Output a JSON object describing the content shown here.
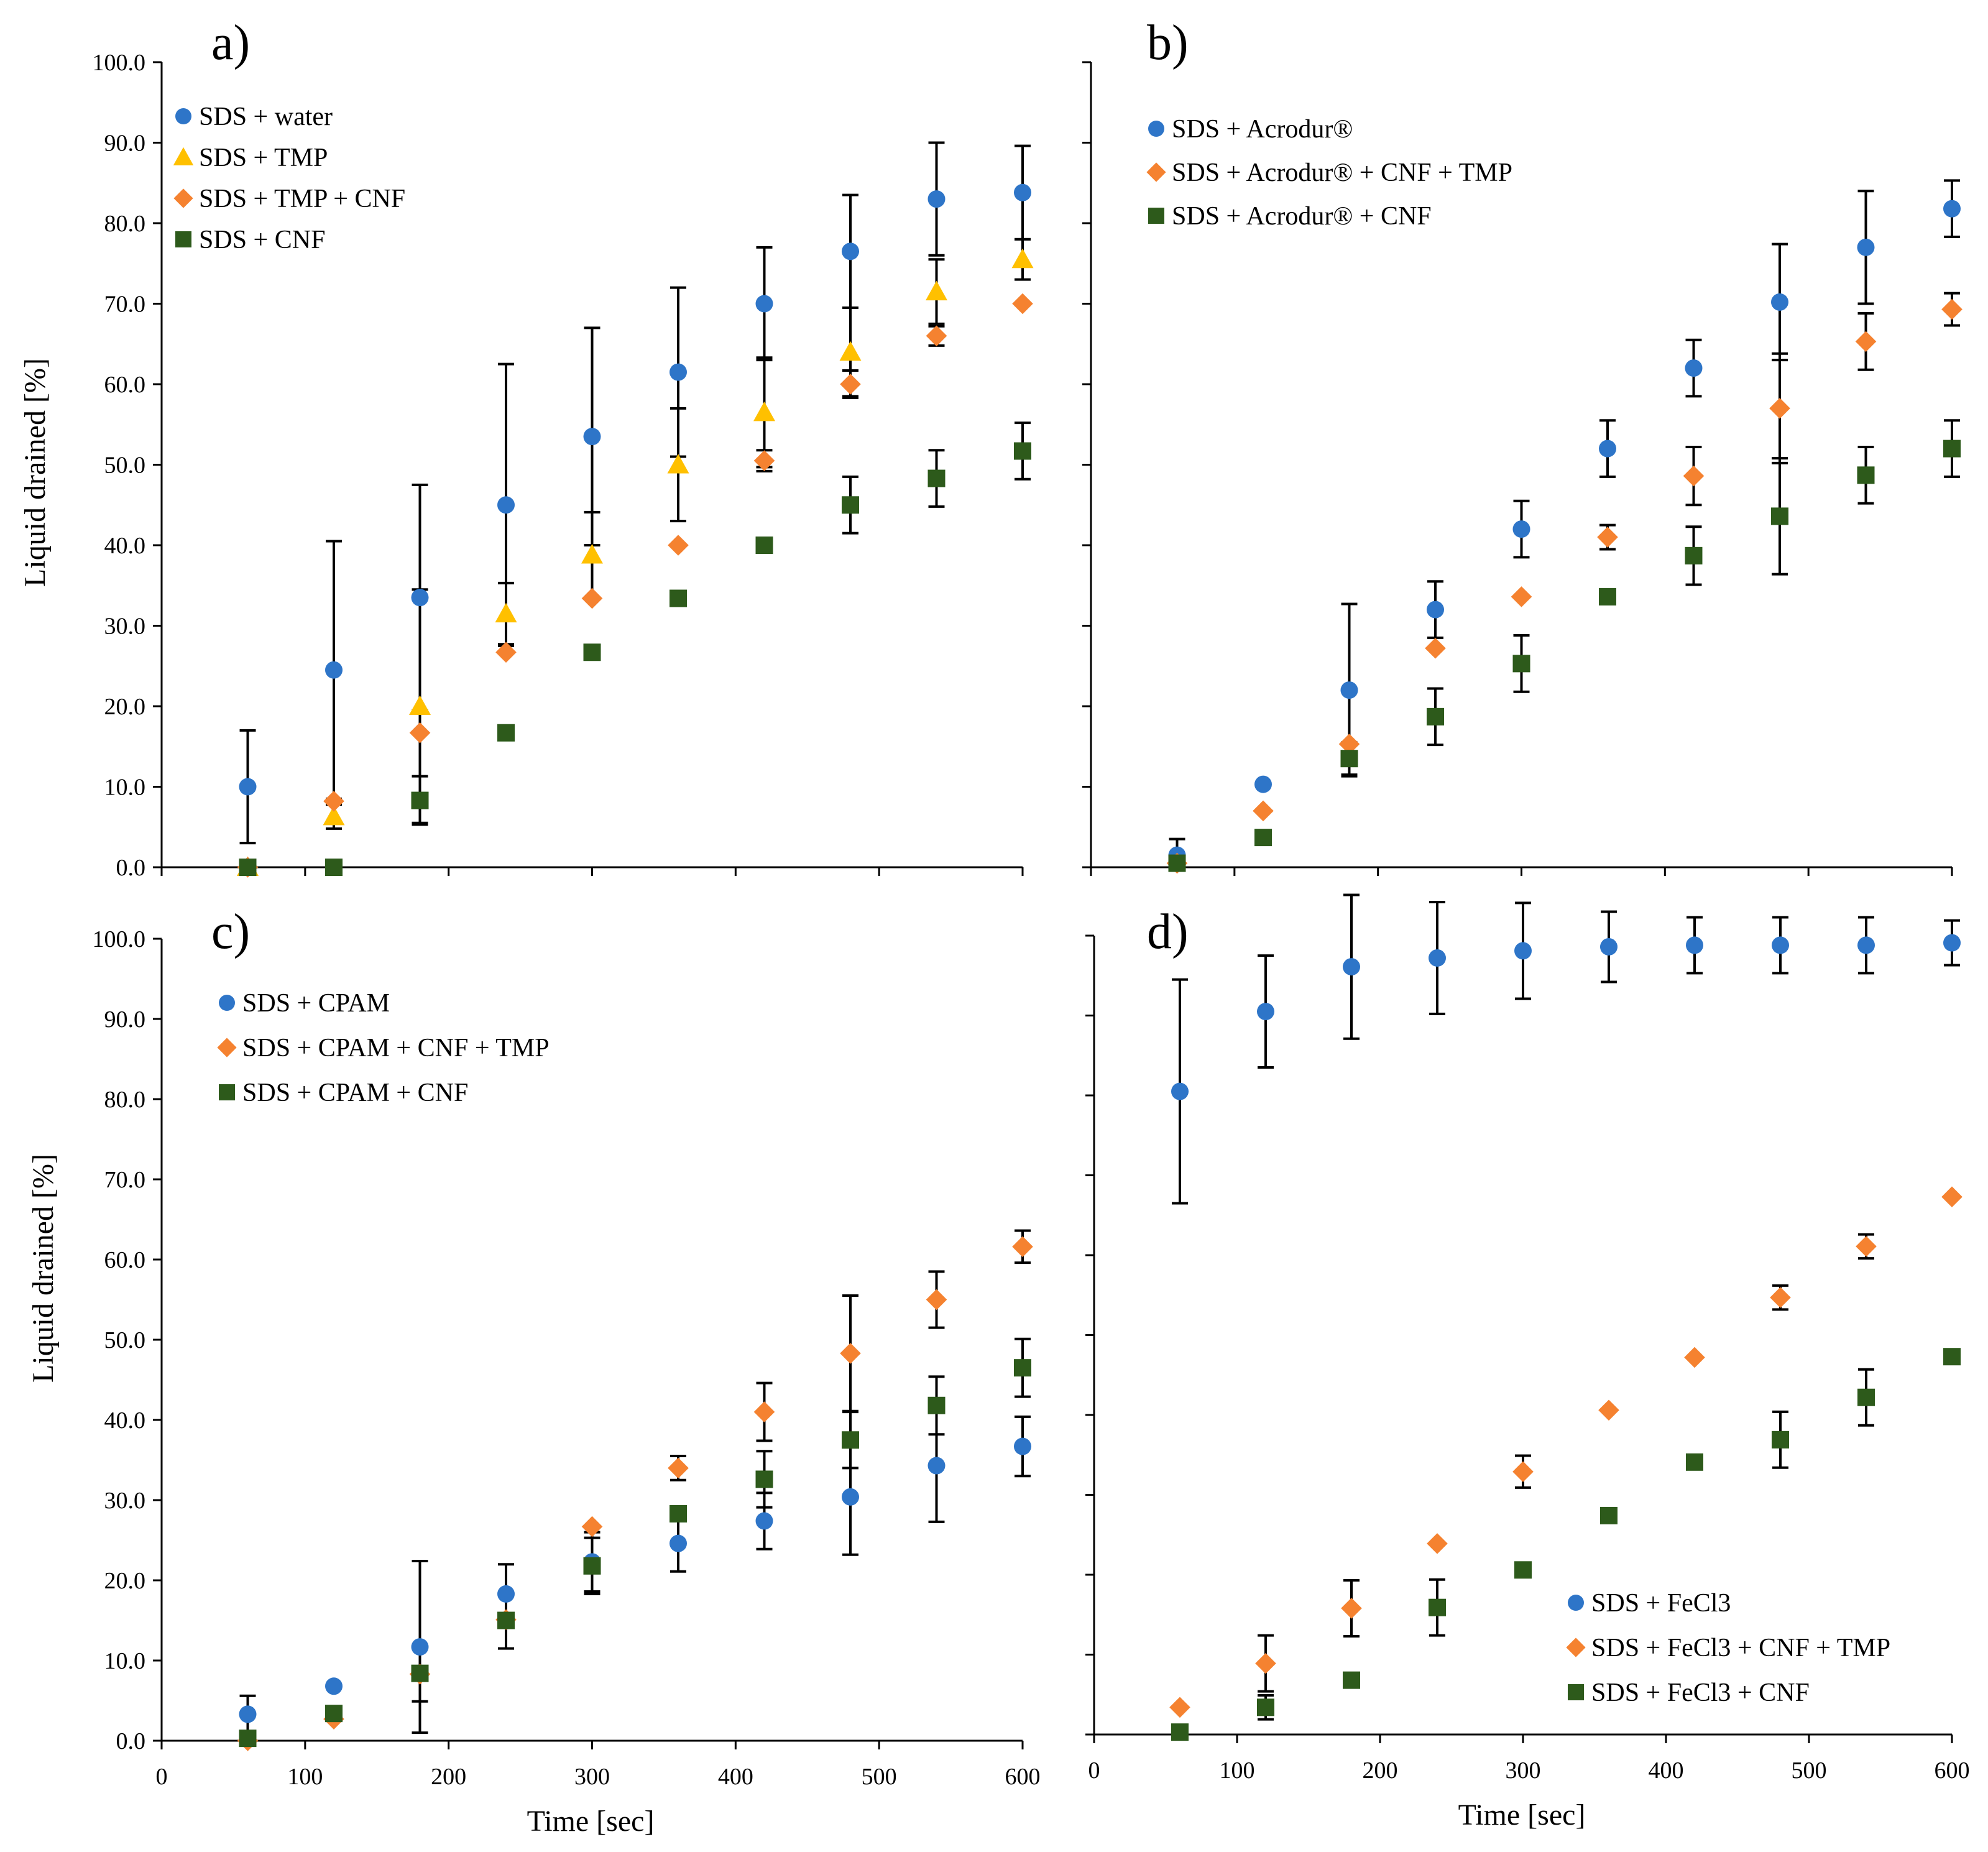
{
  "chart_data": [
    {
      "id": "a",
      "type": "scatter",
      "panel_label": "a)",
      "xlabel": "",
      "ylabel": "Liquid drained [%]",
      "xlim": [
        0,
        600
      ],
      "ylim": [
        0,
        100
      ],
      "x_ticks": [],
      "y_ticks": [
        "0.0",
        "10.0",
        "20.0",
        "30.0",
        "40.0",
        "50.0",
        "60.0",
        "70.0",
        "80.0",
        "90.0",
        "100.0"
      ],
      "legend_position": "top-left",
      "series": [
        {
          "name": "SDS +  water",
          "marker": "circle",
          "color": "#2e75c8",
          "x": [
            60,
            120,
            180,
            240,
            300,
            360,
            420,
            480,
            540,
            600
          ],
          "y": [
            10,
            24.5,
            33.5,
            45,
            53.5,
            61.5,
            70,
            76.5,
            83,
            83.8
          ],
          "err": [
            7,
            16,
            14,
            17.5,
            13.5,
            10.5,
            7,
            7,
            7,
            5.8
          ]
        },
        {
          "name": "SDS + TMP",
          "marker": "triangle",
          "color": "#ffc000",
          "x": [
            60,
            120,
            180,
            240,
            300,
            360,
            420,
            480,
            540,
            600
          ],
          "y": [
            0,
            6.3,
            20,
            31.5,
            38.8,
            50,
            56.5,
            64,
            71.5,
            75.5
          ],
          "err": [
            0,
            0,
            0,
            0,
            0,
            0,
            0,
            0,
            0,
            0
          ]
        },
        {
          "name": "SDS + TMP + CNF",
          "marker": "diamond",
          "color": "#f58230",
          "x": [
            60,
            120,
            180,
            240,
            300,
            360,
            420,
            480,
            540,
            600
          ],
          "y": [
            0,
            8.2,
            16.7,
            26.7,
            33.4,
            40,
            50.5,
            60,
            66,
            70
          ],
          "err": [
            0,
            0,
            0,
            0,
            0,
            0,
            0,
            0,
            0,
            0
          ]
        },
        {
          "name": "SDS +  CNF",
          "marker": "square",
          "color": "#2d5a1b",
          "x": [
            60,
            120,
            180,
            240,
            300,
            360,
            420,
            480,
            540,
            600
          ],
          "y": [
            0,
            0,
            8.3,
            16.7,
            26.7,
            33.4,
            40,
            45,
            48.3,
            51.7
          ],
          "err": [
            0,
            0,
            3,
            0,
            0,
            0,
            0,
            3.5,
            3.5,
            3.5
          ]
        }
      ],
      "extra_error_bars": [
        {
          "x": 120,
          "y": 6.3,
          "err": 1.5
        },
        {
          "x": 300,
          "y": 38.8,
          "err": 5.3
        },
        {
          "x": 360,
          "y": 50,
          "err": 7
        },
        {
          "x": 420,
          "y": 56.5,
          "err": 6.8
        },
        {
          "x": 480,
          "y": 64,
          "err": 5.5
        },
        {
          "x": 540,
          "y": 71.5,
          "err": 4
        },
        {
          "x": 600,
          "y": 75.5,
          "err": 2.5
        },
        {
          "x": 180,
          "y": 20,
          "err": 14.5
        },
        {
          "x": 240,
          "y": 31.5,
          "err": 3.8
        },
        {
          "x": 420,
          "y": 50.5,
          "err": 1.3
        },
        {
          "x": 480,
          "y": 60,
          "err": 1.7
        },
        {
          "x": 540,
          "y": 66,
          "err": 1.2
        }
      ]
    },
    {
      "id": "b",
      "type": "scatter",
      "panel_label": "b)",
      "xlabel": "",
      "ylabel": "",
      "xlim": [
        0,
        600
      ],
      "ylim": [
        0,
        100
      ],
      "x_ticks": [],
      "y_ticks": [],
      "legend_position": "top-left",
      "series": [
        {
          "name": "SDS + Acrodur®",
          "marker": "circle",
          "color": "#2e75c8",
          "x": [
            60,
            120,
            180,
            240,
            300,
            360,
            420,
            480,
            540,
            600
          ],
          "y": [
            1.5,
            10.3,
            22,
            32,
            42,
            52,
            62,
            70.2,
            77,
            81.8
          ],
          "err": [
            2,
            0,
            10.7,
            3.5,
            3.5,
            3.5,
            3.5,
            7.2,
            7,
            3.5
          ]
        },
        {
          "name": "SDS + Acrodur® + CNF + TMP",
          "marker": "diamond",
          "color": "#f58230",
          "x": [
            60,
            120,
            180,
            240,
            300,
            360,
            420,
            480,
            540,
            600
          ],
          "y": [
            0.5,
            7,
            15.3,
            27.2,
            33.6,
            41,
            48.6,
            57,
            65.3,
            69.3
          ],
          "err": [
            0,
            0,
            0,
            0,
            0,
            1.5,
            3.6,
            6.8,
            3.5,
            2
          ]
        },
        {
          "name": "SDS + Acrodur® + CNF",
          "marker": "square",
          "color": "#2d5a1b",
          "x": [
            60,
            120,
            180,
            240,
            300,
            360,
            420,
            480,
            540,
            600
          ],
          "y": [
            0.5,
            3.7,
            13.5,
            18.7,
            25.3,
            33.6,
            38.7,
            43.6,
            48.7,
            52
          ],
          "err": [
            0,
            0,
            2,
            3.5,
            3.5,
            0,
            3.6,
            7.2,
            3.5,
            3.5
          ]
        }
      ],
      "extra_error_bars": []
    },
    {
      "id": "c",
      "type": "scatter",
      "panel_label": "c)",
      "xlabel": "Time [sec]",
      "ylabel": "Liquid drained [%]",
      "xlim": [
        0,
        600
      ],
      "ylim": [
        0,
        100
      ],
      "x_ticks": [
        "0",
        "100",
        "200",
        "300",
        "400",
        "500",
        "600"
      ],
      "y_ticks": [
        "0.0",
        "10.0",
        "20.0",
        "30.0",
        "40.0",
        "50.0",
        "60.0",
        "70.0",
        "80.0",
        "90.0",
        "100.0"
      ],
      "legend_position": "top-left",
      "series": [
        {
          "name": "SDS + CPAM",
          "marker": "circle",
          "color": "#2e75c8",
          "x": [
            60,
            120,
            180,
            240,
            300,
            360,
            420,
            480,
            540,
            600
          ],
          "y": [
            3.3,
            6.8,
            11.7,
            18.3,
            22.3,
            24.6,
            27.4,
            30.4,
            34.3,
            36.7
          ],
          "err": [
            2.3,
            0,
            10.7,
            3.7,
            3.7,
            3.5,
            3.5,
            7.2,
            7,
            3.7
          ]
        },
        {
          "name": "SDS + CPAM + CNF + TMP",
          "marker": "diamond",
          "color": "#f58230",
          "x": [
            60,
            120,
            180,
            240,
            300,
            360,
            420,
            480,
            540,
            600
          ],
          "y": [
            0,
            2.7,
            8.3,
            15.1,
            26.7,
            34,
            41,
            48.3,
            55,
            61.6
          ],
          "err": [
            0,
            0,
            0,
            0,
            0,
            1.5,
            3.6,
            7.2,
            3.5,
            2
          ]
        },
        {
          "name": "SDS + CPAM + CNF",
          "marker": "square",
          "color": "#2d5a1b",
          "x": [
            60,
            120,
            180,
            240,
            300,
            360,
            420,
            480,
            540,
            600
          ],
          "y": [
            0.3,
            3.4,
            8.4,
            15,
            21.8,
            28.3,
            32.6,
            37.5,
            41.8,
            46.5
          ],
          "err": [
            0,
            0,
            3.5,
            3.5,
            3.5,
            0,
            3.5,
            3.5,
            3.6,
            3.6
          ]
        }
      ],
      "extra_error_bars": []
    },
    {
      "id": "d",
      "type": "scatter",
      "panel_label": "d)",
      "xlabel": "Time [sec]",
      "ylabel": "",
      "xlim": [
        0,
        600
      ],
      "ylim": [
        0,
        100
      ],
      "x_ticks": [
        "0",
        "100",
        "200",
        "300",
        "400",
        "500",
        "600"
      ],
      "y_ticks": [],
      "legend_position": "bottom-right",
      "series": [
        {
          "name": "SDS + FeCl3",
          "marker": "circle",
          "color": "#2e75c8",
          "x": [
            60,
            120,
            180,
            240,
            300,
            360,
            420,
            480,
            540,
            600
          ],
          "y": [
            80.5,
            90.5,
            96.1,
            97.2,
            98.1,
            98.6,
            98.8,
            98.8,
            98.8,
            99.1
          ],
          "err": [
            14,
            7,
            9,
            7,
            6,
            4.4,
            3.5,
            3.5,
            3.5,
            2.8
          ]
        },
        {
          "name": "SDS + FeCl3 + CNF + TMP",
          "marker": "diamond",
          "color": "#f58230",
          "x": [
            60,
            120,
            180,
            240,
            300,
            360,
            420,
            480,
            540,
            600
          ],
          "y": [
            3.4,
            8.9,
            15.8,
            23.9,
            32.9,
            40.6,
            47.2,
            54.7,
            61.1,
            67.3
          ],
          "err": [
            0,
            3.5,
            3.5,
            0,
            2,
            0,
            0,
            1.5,
            1.5,
            0
          ]
        },
        {
          "name": "SDS + FeCl3 + CNF",
          "marker": "square",
          "color": "#2d5a1b",
          "x": [
            60,
            120,
            180,
            240,
            300,
            360,
            420,
            480,
            540,
            600
          ],
          "y": [
            0.3,
            3.4,
            6.8,
            15.9,
            20.6,
            27.4,
            34.1,
            36.9,
            42.2,
            47.3
          ],
          "err": [
            0,
            1.5,
            0,
            3.5,
            0,
            0,
            0,
            3.5,
            3.5,
            0
          ]
        }
      ],
      "extra_error_bars": []
    }
  ]
}
